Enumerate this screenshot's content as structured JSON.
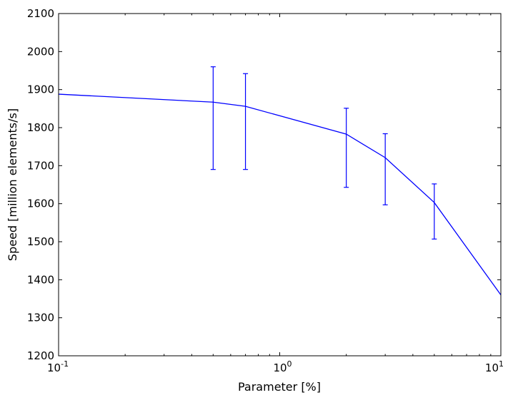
{
  "chart_data": {
    "type": "line",
    "title": "",
    "xlabel": "Parameter [%]",
    "ylabel": "Speed [million elements/s]",
    "x_scale": "log",
    "xlim": [
      0.1,
      10
    ],
    "ylim": [
      1200,
      2100
    ],
    "grid": false,
    "legend": "none",
    "line_color": "#0000ff",
    "x_ticks": [
      {
        "value": 0.1,
        "base": "10",
        "exp": "-1"
      },
      {
        "value": 1,
        "base": "10",
        "exp": "0"
      },
      {
        "value": 10,
        "base": "10",
        "exp": "1"
      }
    ],
    "y_ticks": [
      1200,
      1300,
      1400,
      1500,
      1600,
      1700,
      1800,
      1900,
      2000,
      2100
    ],
    "series": [
      {
        "x": [
          0.1,
          0.5,
          0.7,
          2,
          3,
          5,
          10
        ],
        "y": [
          1888,
          1867,
          1856,
          1783,
          1721,
          1603,
          1360
        ],
        "yerr_low": [
          null,
          1690,
          1690,
          1643,
          1597,
          1507,
          null
        ],
        "yerr_high": [
          null,
          1960,
          1942,
          1851,
          1784,
          1652,
          null
        ]
      }
    ]
  }
}
